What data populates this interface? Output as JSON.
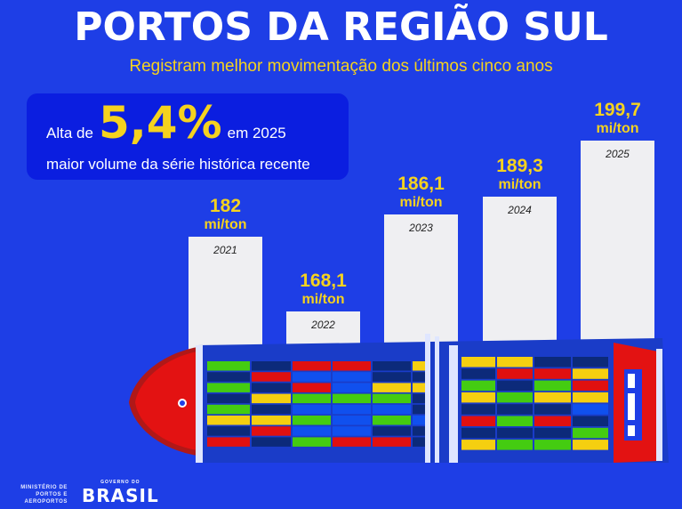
{
  "header": {
    "title": "PORTOS DA REGIÃO SUL",
    "subtitle": "Registram melhor movimentação dos últimos cinco anos"
  },
  "callout": {
    "prefix": "Alta de",
    "value": "5,4%",
    "suffix": "em 2025",
    "line2": "maior volume da série histórica recente"
  },
  "chart_data": {
    "type": "bar",
    "title": "PORTOS DA REGIÃO SUL",
    "categories": [
      "2021",
      "2022",
      "2023",
      "2024",
      "2025"
    ],
    "values": [
      182,
      168.1,
      186.1,
      189.3,
      199.7
    ],
    "value_labels": [
      "182",
      "168,1",
      "186,1",
      "189,3",
      "199,7"
    ],
    "unit": "mi/ton",
    "xlabel": "",
    "ylabel": ""
  },
  "footer": {
    "ministry": "MINISTÉRIO DE PORTOS E AEROPORTOS",
    "gov_small": "GOVERNO DO",
    "gov_big": "BRASIL"
  },
  "colors": {
    "background": "#1e3ee6",
    "accent": "#f5d21f",
    "bar": "#efeff2"
  }
}
